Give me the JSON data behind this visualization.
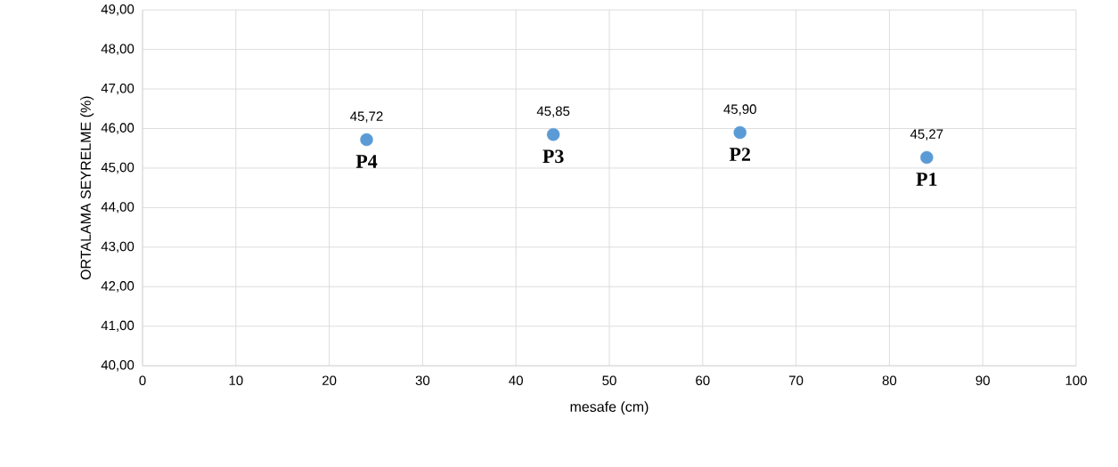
{
  "chart_data": {
    "type": "scatter",
    "xlabel": "mesafe (cm)",
    "ylabel": "ORTALAMA SEYRELME (%)",
    "x": [
      24,
      44,
      64,
      84
    ],
    "values": [
      45.72,
      45.85,
      45.9,
      45.27
    ],
    "value_labels": [
      "45,72",
      "45,85",
      "45,90",
      "45,27"
    ],
    "color": "#5b9bd5",
    "marker": "circle",
    "xlim": [
      0,
      100
    ],
    "xticks": [
      0,
      10,
      20,
      30,
      40,
      50,
      60,
      70,
      80,
      90,
      100
    ],
    "ylim": [
      40,
      49
    ],
    "yticks": [
      {
        "value": 40,
        "label": "40,00"
      },
      {
        "value": 41,
        "label": "41,00"
      },
      {
        "value": 42,
        "label": "42,00"
      },
      {
        "value": 43,
        "label": "43,00"
      },
      {
        "value": 44,
        "label": "44,00"
      },
      {
        "value": 45,
        "label": "45,00"
      },
      {
        "value": 46,
        "label": "46,00"
      },
      {
        "value": 47,
        "label": "47,00"
      },
      {
        "value": 48,
        "label": "48,00"
      },
      {
        "value": 49,
        "label": "49,00"
      }
    ],
    "grid": true,
    "annotations": [
      {
        "text": "P4",
        "x": 24,
        "y": 45.72
      },
      {
        "text": "P3",
        "x": 44,
        "y": 45.85
      },
      {
        "text": "P2",
        "x": 64,
        "y": 45.9
      },
      {
        "text": "P1",
        "x": 84,
        "y": 45.27
      }
    ]
  }
}
